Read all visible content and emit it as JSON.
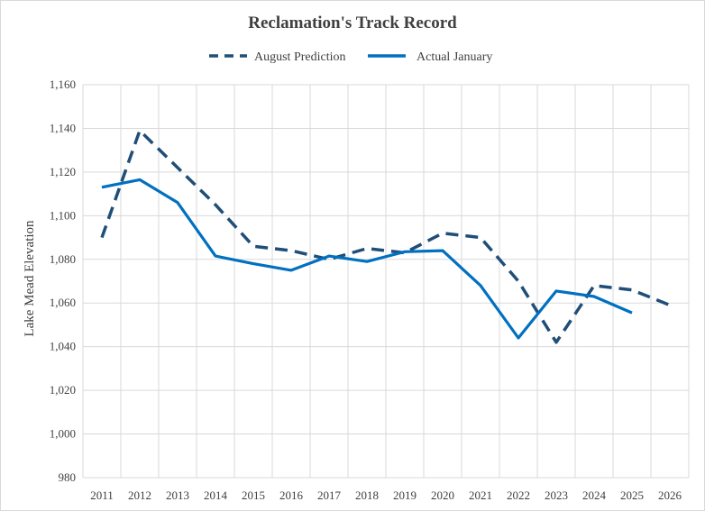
{
  "chart_data": {
    "type": "line",
    "title": "Reclamation's Track Record",
    "xlabel": "",
    "ylabel": "Lake Mead Elevation",
    "x_ticks": [
      "2011",
      "2012",
      "2013",
      "2014",
      "2015",
      "2016",
      "2017",
      "2018",
      "2019",
      "2020",
      "2021",
      "2022",
      "2023",
      "2024",
      "2025",
      "2026"
    ],
    "y_ticks": [
      "980",
      "1,000",
      "1,020",
      "1,040",
      "1,060",
      "1,080",
      "1,100",
      "1,120",
      "1,140",
      "1,160"
    ],
    "ylim": [
      980,
      1160
    ],
    "grid": true,
    "legend_position": "top",
    "series": [
      {
        "name": "August Prediction",
        "style": "dashed",
        "color": "#1f4e79",
        "points": [
          {
            "x": 2011,
            "y": 1090
          },
          {
            "x": 2012,
            "y": 1139
          },
          {
            "x": 2013,
            "y": 1122
          },
          {
            "x": 2014,
            "y": 1105
          },
          {
            "x": 2015,
            "y": 1086
          },
          {
            "x": 2016,
            "y": 1084
          },
          {
            "x": 2017,
            "y": 1080
          },
          {
            "x": 2018,
            "y": 1085
          },
          {
            "x": 2019,
            "y": 1083
          },
          {
            "x": 2020,
            "y": 1092
          },
          {
            "x": 2021,
            "y": 1090
          },
          {
            "x": 2022,
            "y": 1070
          },
          {
            "x": 2023,
            "y": 1042
          },
          {
            "x": 2024,
            "y": 1068
          },
          {
            "x": 2025,
            "y": 1066
          },
          {
            "x": 2026,
            "y": 1059
          }
        ]
      },
      {
        "name": "Actual January",
        "style": "solid",
        "color": "#0070c0",
        "points": [
          {
            "x": 2011,
            "y": 1113
          },
          {
            "x": 2012,
            "y": 1116.5
          },
          {
            "x": 2013,
            "y": 1106
          },
          {
            "x": 2014,
            "y": 1081.5
          },
          {
            "x": 2015,
            "y": 1078
          },
          {
            "x": 2016,
            "y": 1075
          },
          {
            "x": 2017,
            "y": 1081.5
          },
          {
            "x": 2018,
            "y": 1079
          },
          {
            "x": 2019,
            "y": 1083.5
          },
          {
            "x": 2020,
            "y": 1084
          },
          {
            "x": 2021,
            "y": 1068
          },
          {
            "x": 2022,
            "y": 1044
          },
          {
            "x": 2023,
            "y": 1065.5
          },
          {
            "x": 2024,
            "y": 1063
          },
          {
            "x": 2025,
            "y": 1055.5
          }
        ]
      }
    ]
  }
}
